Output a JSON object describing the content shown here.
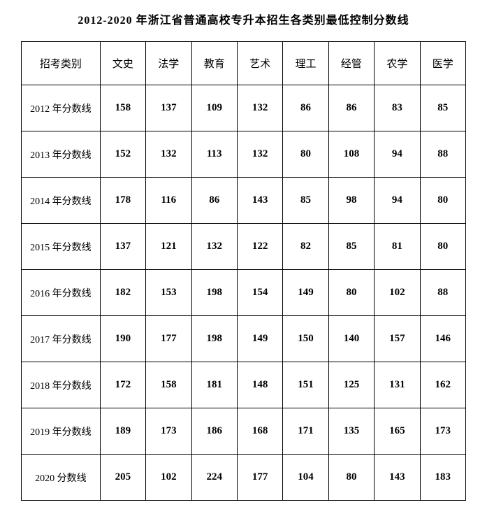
{
  "title": "2012-2020 年浙江省普通高校专升本招生各类别最低控制分数线",
  "table": {
    "columns": [
      "招考类别",
      "文史",
      "法学",
      "教育",
      "艺术",
      "理工",
      "经管",
      "农学",
      "医学"
    ],
    "rows": [
      {
        "label": "2012 年分数线",
        "values": [
          "158",
          "137",
          "109",
          "132",
          "86",
          "86",
          "83",
          "85"
        ]
      },
      {
        "label": "2013 年分数线",
        "values": [
          "152",
          "132",
          "113",
          "132",
          "80",
          "108",
          "94",
          "88"
        ]
      },
      {
        "label": "2014 年分数线",
        "values": [
          "178",
          "116",
          "86",
          "143",
          "85",
          "98",
          "94",
          "80"
        ]
      },
      {
        "label": "2015 年分数线",
        "values": [
          "137",
          "121",
          "132",
          "122",
          "82",
          "85",
          "81",
          "80"
        ]
      },
      {
        "label": "2016 年分数线",
        "values": [
          "182",
          "153",
          "198",
          "154",
          "149",
          "80",
          "102",
          "88"
        ]
      },
      {
        "label": "2017 年分数线",
        "values": [
          "190",
          "177",
          "198",
          "149",
          "150",
          "140",
          "157",
          "146"
        ]
      },
      {
        "label": "2018 年分数线",
        "values": [
          "172",
          "158",
          "181",
          "148",
          "151",
          "125",
          "131",
          "162"
        ]
      },
      {
        "label": "2019 年分数线",
        "values": [
          "189",
          "173",
          "186",
          "168",
          "171",
          "135",
          "165",
          "173"
        ]
      },
      {
        "label": "2020 分数线",
        "values": [
          "205",
          "102",
          "224",
          "177",
          "104",
          "80",
          "143",
          "183"
        ]
      }
    ],
    "column_widths": {
      "category": 112,
      "data": 65
    },
    "border_color": "#000000",
    "background_color": "#ffffff",
    "text_color": "#000000",
    "header_fontsize": 15,
    "cell_fontsize": 15,
    "title_fontsize": 16
  }
}
